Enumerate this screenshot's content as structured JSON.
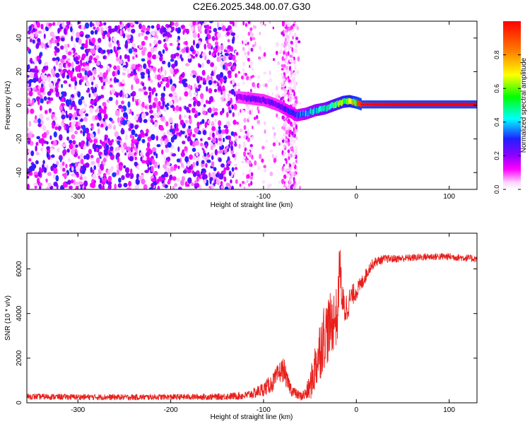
{
  "figure": {
    "title": "C2E6.2025.348.00.07.G30"
  },
  "chart_data": [
    {
      "type": "heatmap",
      "panel": "spectrogram",
      "xlabel": "Height of straight line (km)",
      "ylabel": "Frequency (Hz)",
      "xlim": [
        -355,
        130
      ],
      "ylim": [
        -50,
        50
      ],
      "xticks": [
        -300,
        -200,
        -100,
        0,
        100
      ],
      "xtick_labels": [
        "-300",
        "-200",
        "-100",
        "0",
        "100"
      ],
      "yticks": [
        -40,
        -20,
        0,
        20,
        40
      ],
      "ytick_labels": [
        "-40",
        "-20",
        "0",
        "20",
        "40"
      ],
      "colorbar": {
        "label": "Normalized spectral amplitude",
        "range": [
          0,
          1
        ],
        "ticks": [
          0.0,
          0.2,
          0.4,
          0.6,
          0.8
        ],
        "tick_labels": [
          "0.0",
          "0.2",
          "0.4",
          "0.6",
          "0.8"
        ],
        "colors": [
          "#ffffff",
          "#ff00ff",
          "#9000ff",
          "#2020ff",
          "#00ffff",
          "#00ff00",
          "#ffff00",
          "#ff8000",
          "#ff0000"
        ]
      },
      "noise_region_x": [
        -355,
        -130
      ],
      "sparse_noise_region_x": [
        -130,
        -60
      ],
      "signal_trace": {
        "x": [
          -130,
          -115,
          -100,
          -85,
          -75,
          -65,
          -55,
          -45,
          -35,
          -25,
          -15,
          -8,
          0,
          5,
          20,
          60,
          100,
          130
        ],
        "freq": [
          5,
          4,
          3,
          0,
          -3,
          -6,
          -5,
          -3,
          -2,
          0,
          2,
          2.5,
          1.5,
          0.5,
          0.5,
          0.5,
          0.5,
          0.5
        ],
        "amplitude": [
          0.25,
          0.3,
          0.3,
          0.3,
          0.35,
          0.4,
          0.5,
          0.55,
          0.6,
          0.7,
          0.8,
          0.85,
          0.9,
          0.95,
          0.98,
          1.0,
          1.0,
          1.0
        ]
      }
    },
    {
      "type": "line",
      "panel": "snr",
      "xlabel": "Height of straight line (km)",
      "ylabel": "SNR (10 * v/v)",
      "xlim": [
        -355,
        130
      ],
      "ylim": [
        0,
        7600
      ],
      "xticks": [
        -300,
        -200,
        -100,
        0,
        100
      ],
      "xtick_labels": [
        "-300",
        "-200",
        "-100",
        "0",
        "100"
      ],
      "yticks": [
        0,
        2000,
        4000,
        6000
      ],
      "ytick_labels": [
        "0",
        "2000",
        "4000",
        "6000"
      ],
      "series": [
        {
          "name": "SNR",
          "color": "#e8201c",
          "x": [
            -355,
            -300,
            -250,
            -200,
            -150,
            -120,
            -110,
            -100,
            -90,
            -82,
            -78,
            -75,
            -70,
            -65,
            -60,
            -55,
            -50,
            -45,
            -40,
            -35,
            -30,
            -25,
            -20,
            -18,
            -15,
            -12,
            -10,
            -5,
            0,
            5,
            10,
            15,
            20,
            30,
            40,
            60,
            80,
            100,
            115,
            130
          ],
          "values": [
            280,
            260,
            250,
            260,
            270,
            320,
            430,
            620,
            900,
            1400,
            1500,
            1000,
            600,
            400,
            300,
            380,
            700,
            1500,
            2300,
            3000,
            3300,
            3700,
            3900,
            6500,
            4400,
            4200,
            4300,
            4800,
            5000,
            5300,
            5700,
            6100,
            6300,
            6450,
            6450,
            6500,
            6550,
            6550,
            6500,
            6450
          ],
          "spread": [
            130,
            130,
            130,
            130,
            140,
            180,
            240,
            320,
            420,
            500,
            550,
            400,
            300,
            220,
            200,
            300,
            600,
            1100,
            1400,
            1500,
            1500,
            1400,
            1300,
            900,
            900,
            800,
            700,
            500,
            400,
            350,
            300,
            250,
            220,
            180,
            170,
            160,
            160,
            160,
            160,
            160
          ]
        }
      ]
    }
  ]
}
